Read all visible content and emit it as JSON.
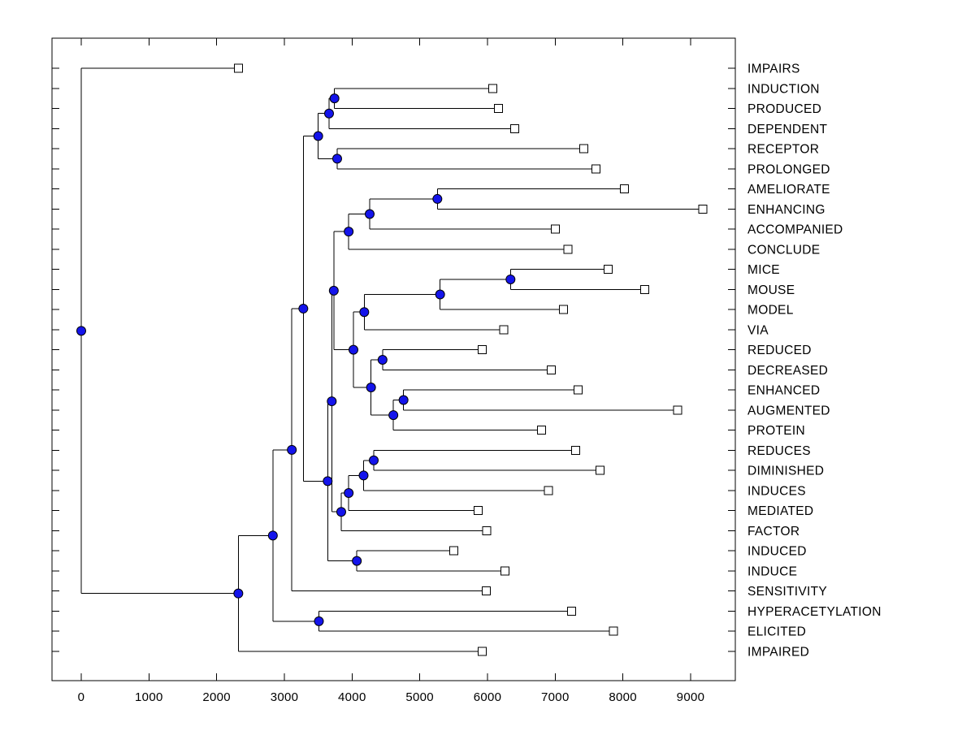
{
  "chart_data": {
    "type": "dendrogram",
    "orientation": "left-to-right",
    "title": "",
    "xlabel": "",
    "ylabel": "",
    "grid": false,
    "x_axis": {
      "ticks": [
        0,
        1000,
        2000,
        3000,
        4000,
        5000,
        6000,
        7000,
        8000,
        9000
      ],
      "range_shown": [
        -430,
        9660
      ]
    },
    "styles": {
      "branch_color": "#000000",
      "node_marker_fill": "#1414eb",
      "node_marker_stroke": "#000000",
      "leaf_marker_fill": "#ffffff",
      "leaf_marker_stroke": "#000000",
      "label_color": "#000000",
      "background": "#ffffff"
    },
    "leaves": [
      {
        "label": "IMPAIRS",
        "distance": 2320
      },
      {
        "label": "INDUCTION",
        "distance": 6080
      },
      {
        "label": "PRODUCED",
        "distance": 6160
      },
      {
        "label": "DEPENDENT",
        "distance": 6400
      },
      {
        "label": "RECEPTOR",
        "distance": 7420
      },
      {
        "label": "PROLONGED",
        "distance": 7600
      },
      {
        "label": "AMELIORATE",
        "distance": 8020
      },
      {
        "label": "ENHANCING",
        "distance": 9180
      },
      {
        "label": "ACCOMPANIED",
        "distance": 7000
      },
      {
        "label": "CONCLUDE",
        "distance": 7190
      },
      {
        "label": "MICE",
        "distance": 7780
      },
      {
        "label": "MOUSE",
        "distance": 8320
      },
      {
        "label": "MODEL",
        "distance": 7120
      },
      {
        "label": "VIA",
        "distance": 6240
      },
      {
        "label": "REDUCED",
        "distance": 5920
      },
      {
        "label": "DECREASED",
        "distance": 6940
      },
      {
        "label": "ENHANCED",
        "distance": 7340
      },
      {
        "label": "AUGMENTED",
        "distance": 8810
      },
      {
        "label": "PROTEIN",
        "distance": 6800
      },
      {
        "label": "REDUCES",
        "distance": 7300
      },
      {
        "label": "DIMINISHED",
        "distance": 7660
      },
      {
        "label": "INDUCES",
        "distance": 6900
      },
      {
        "label": "MEDIATED",
        "distance": 5860
      },
      {
        "label": "FACTOR",
        "distance": 5990
      },
      {
        "label": "INDUCED",
        "distance": 5500
      },
      {
        "label": "INDUCE",
        "distance": 6260
      },
      {
        "label": "SENSITIVITY",
        "distance": 5980
      },
      {
        "label": "HYPERACETYLATION",
        "distance": 7240
      },
      {
        "label": "ELICITED",
        "distance": 7860
      },
      {
        "label": "IMPAIRED",
        "distance": 5920
      }
    ],
    "tree": {
      "d": 0,
      "children": [
        {
          "leaf": "IMPAIRS",
          "d": 2320
        },
        {
          "d": 2320,
          "children": [
            {
              "d": 2830,
              "children": [
                {
                  "d": 3110,
                  "children": [
                    {
                      "d": 3280,
                      "children": [
                        {
                          "d": 3500,
                          "children": [
                            {
                              "d": 3660,
                              "children": [
                                {
                                  "d": 3740,
                                  "children": [
                                    {
                                      "leaf": "INDUCTION",
                                      "d": 6080
                                    },
                                    {
                                      "leaf": "PRODUCED",
                                      "d": 6160
                                    }
                                  ]
                                },
                                {
                                  "leaf": "DEPENDENT",
                                  "d": 6400
                                }
                              ]
                            },
                            {
                              "d": 3780,
                              "children": [
                                {
                                  "leaf": "RECEPTOR",
                                  "d": 7420
                                },
                                {
                                  "leaf": "PROLONGED",
                                  "d": 7600
                                }
                              ]
                            }
                          ]
                        },
                        {
                          "d": 3640,
                          "children": [
                            {
                              "d": 3700,
                              "children": [
                                {
                                  "d": 3730,
                                  "children": [
                                    {
                                      "d": 3950,
                                      "children": [
                                        {
                                          "d": 4260,
                                          "children": [
                                            {
                                              "d": 5260,
                                              "children": [
                                                {
                                                  "leaf": "AMELIORATE",
                                                  "d": 8020
                                                },
                                                {
                                                  "leaf": "ENHANCING",
                                                  "d": 9180
                                                }
                                              ]
                                            },
                                            {
                                              "leaf": "ACCOMPANIED",
                                              "d": 7000
                                            }
                                          ]
                                        },
                                        {
                                          "leaf": "CONCLUDE",
                                          "d": 7190
                                        }
                                      ]
                                    },
                                    {
                                      "d": 4020,
                                      "children": [
                                        {
                                          "d": 4180,
                                          "children": [
                                            {
                                              "d": 5300,
                                              "children": [
                                                {
                                                  "d": 6340,
                                                  "children": [
                                                    {
                                                      "leaf": "MICE",
                                                      "d": 7780
                                                    },
                                                    {
                                                      "leaf": "MOUSE",
                                                      "d": 8320
                                                    }
                                                  ]
                                                },
                                                {
                                                  "leaf": "MODEL",
                                                  "d": 7120
                                                }
                                              ]
                                            },
                                            {
                                              "leaf": "VIA",
                                              "d": 6240
                                            }
                                          ]
                                        },
                                        {
                                          "d": 4280,
                                          "children": [
                                            {
                                              "d": 4450,
                                              "children": [
                                                {
                                                  "leaf": "REDUCED",
                                                  "d": 5920
                                                },
                                                {
                                                  "leaf": "DECREASED",
                                                  "d": 6940
                                                }
                                              ]
                                            },
                                            {
                                              "d": 4610,
                                              "children": [
                                                {
                                                  "d": 4760,
                                                  "children": [
                                                    {
                                                      "leaf": "ENHANCED",
                                                      "d": 7340
                                                    },
                                                    {
                                                      "leaf": "AUGMENTED",
                                                      "d": 8810
                                                    }
                                                  ]
                                                },
                                                {
                                                  "leaf": "PROTEIN",
                                                  "d": 6800
                                                }
                                              ]
                                            }
                                          ]
                                        }
                                      ]
                                    }
                                  ]
                                },
                                {
                                  "d": 3840,
                                  "children": [
                                    {
                                      "d": 3950,
                                      "children": [
                                        {
                                          "d": 4170,
                                          "children": [
                                            {
                                              "d": 4320,
                                              "children": [
                                                {
                                                  "leaf": "REDUCES",
                                                  "d": 7300
                                                },
                                                {
                                                  "leaf": "DIMINISHED",
                                                  "d": 7660
                                                }
                                              ]
                                            },
                                            {
                                              "leaf": "INDUCES",
                                              "d": 6900
                                            }
                                          ]
                                        },
                                        {
                                          "leaf": "MEDIATED",
                                          "d": 5860
                                        }
                                      ]
                                    },
                                    {
                                      "leaf": "FACTOR",
                                      "d": 5990
                                    }
                                  ]
                                }
                              ]
                            },
                            {
                              "d": 4070,
                              "children": [
                                {
                                  "leaf": "INDUCED",
                                  "d": 5500
                                },
                                {
                                  "leaf": "INDUCE",
                                  "d": 6260
                                }
                              ]
                            }
                          ]
                        }
                      ]
                    },
                    {
                      "leaf": "SENSITIVITY",
                      "d": 5980
                    }
                  ]
                },
                {
                  "d": 3510,
                  "children": [
                    {
                      "leaf": "HYPERACETYLATION",
                      "d": 7240
                    },
                    {
                      "leaf": "ELICITED",
                      "d": 7860
                    }
                  ]
                }
              ]
            },
            {
              "leaf": "IMPAIRED",
              "d": 5920
            }
          ]
        }
      ]
    }
  }
}
